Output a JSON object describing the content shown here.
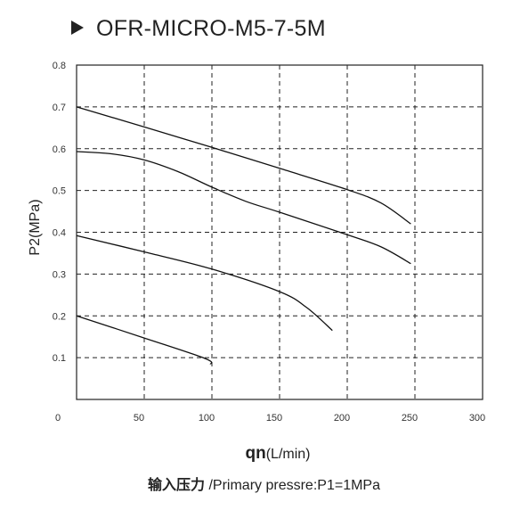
{
  "title": "OFR-MICRO-M5-7-5M",
  "caption": {
    "chinese": "输入压力",
    "english": " /Primary pressre:P1=1MPa"
  },
  "chart_data": {
    "type": "line",
    "title": "OFR-MICRO-M5-7-5M",
    "xlabel_bold": "qn",
    "xlabel_rest": "(L/min)",
    "ylabel": "P2(MPa)",
    "xlim": [
      0,
      300
    ],
    "ylim": [
      0,
      0.8
    ],
    "x_ticks": [
      "0",
      "50",
      "100",
      "150",
      "200",
      "250",
      "300"
    ],
    "y_ticks": [
      "0.1",
      "0.2",
      "0.3",
      "0.4",
      "0.5",
      "0.6",
      "0.7",
      "0.8"
    ],
    "grid": true,
    "series": [
      {
        "x": [
          0,
          50,
          100,
          150,
          200,
          225,
          247
        ],
        "y": [
          0.7,
          0.652,
          0.603,
          0.553,
          0.502,
          0.47,
          0.42
        ]
      },
      {
        "x": [
          0,
          25,
          50,
          75,
          100,
          125,
          150,
          200,
          225,
          247
        ],
        "y": [
          0.593,
          0.588,
          0.573,
          0.545,
          0.508,
          0.474,
          0.448,
          0.394,
          0.365,
          0.325
        ]
      },
      {
        "x": [
          0,
          50,
          100,
          150,
          170,
          189
        ],
        "y": [
          0.392,
          0.353,
          0.312,
          0.258,
          0.22,
          0.165
        ]
      },
      {
        "x": [
          0,
          50,
          95,
          99
        ],
        "y": [
          0.2,
          0.147,
          0.098,
          0.084
        ]
      }
    ]
  }
}
